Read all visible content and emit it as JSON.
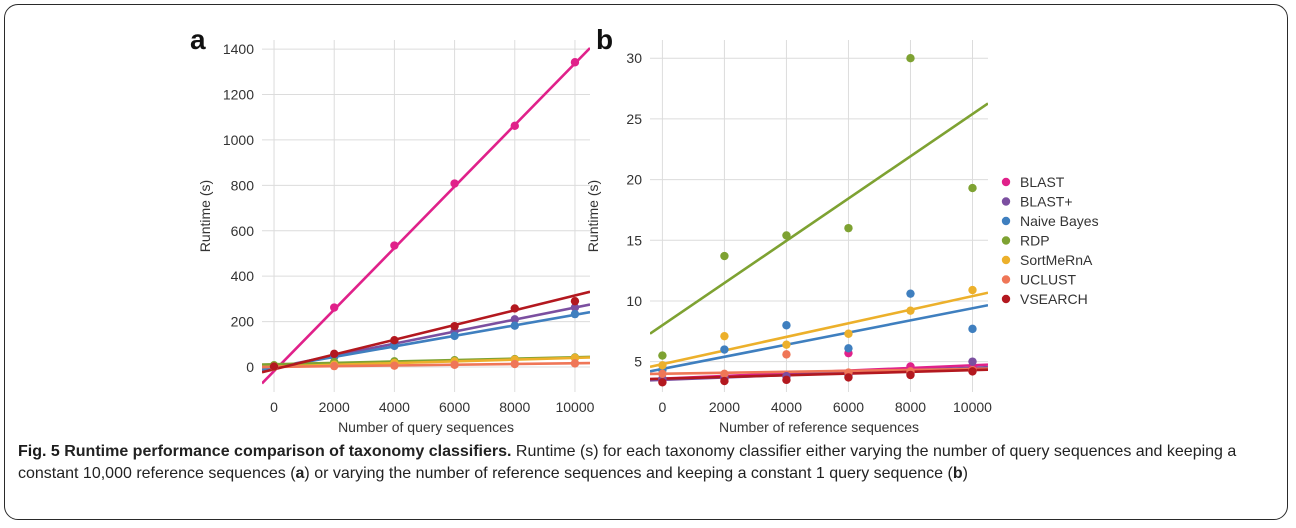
{
  "figure": {
    "panel_labels": [
      "a",
      "b"
    ],
    "caption": {
      "label": "Fig. 5",
      "title": " Runtime performance comparison of taxonomy classifiers.",
      "text1": " Runtime (s) for each taxonomy classifier either varying the number of query sequences and keeping a constant 10,000 reference sequences (",
      "ref_a": "a",
      "text2": ") or varying the number of reference sequences and keeping a constant 1 query sequence (",
      "ref_b": "b",
      "text3": ")"
    }
  },
  "series_colors": [
    {
      "name": "BLAST",
      "color": "#e0218a"
    },
    {
      "name": "BLAST+",
      "color": "#7b4fa0"
    },
    {
      "name": "Naive Bayes",
      "color": "#3f7fbf"
    },
    {
      "name": "RDP",
      "color": "#7ea232"
    },
    {
      "name": "SortMeRnA",
      "color": "#ecb02b"
    },
    {
      "name": "UCLUST",
      "color": "#ef7657"
    },
    {
      "name": "VSEARCH",
      "color": "#b3181f"
    }
  ],
  "chart_data": [
    {
      "type": "scatter",
      "panel": "a",
      "xlabel": "Number of query sequences",
      "ylabel": "Runtime (s)",
      "xlim": [
        -400,
        10500
      ],
      "ylim": [
        -110,
        1440
      ],
      "xticks": [
        0,
        2000,
        4000,
        6000,
        8000,
        10000
      ],
      "yticks": [
        0,
        200,
        400,
        600,
        800,
        1000,
        1200,
        1400
      ],
      "grid": true,
      "x": [
        0,
        2000,
        4000,
        6000,
        8000,
        10000
      ],
      "series": [
        {
          "name": "BLAST",
          "values": [
            2,
            262,
            535,
            808,
            1062,
            1342
          ],
          "fit": [
            -18,
            135.5
          ]
        },
        {
          "name": "BLAST+",
          "values": [
            1,
            53,
            105,
            158,
            210,
            262
          ],
          "fit": [
            -3,
            26.5
          ]
        },
        {
          "name": "Naive Bayes",
          "values": [
            2,
            45,
            93,
            137,
            182,
            233
          ],
          "fit": [
            -2,
            23.2
          ]
        },
        {
          "name": "RDP",
          "values": [
            8,
            22,
            25,
            30,
            35,
            42
          ],
          "fit": [
            12,
            3.1
          ]
        },
        {
          "name": "SortMeRnA",
          "values": [
            2,
            10,
            18,
            25,
            33,
            40
          ],
          "fit": [
            2,
            3.8
          ]
        },
        {
          "name": "UCLUST",
          "values": [
            1,
            4,
            6,
            10,
            13,
            16
          ],
          "fit": [
            0.5,
            1.6
          ]
        },
        {
          "name": "VSEARCH",
          "values": [
            2,
            58,
            118,
            180,
            258,
            290
          ],
          "fit": [
            -10,
            32.5
          ]
        }
      ]
    },
    {
      "type": "scatter",
      "panel": "b",
      "xlabel": "Number of reference sequences",
      "ylabel": "Runtime (s)",
      "xlim": [
        -400,
        10500
      ],
      "ylim": [
        2.5,
        31.5
      ],
      "xticks": [
        0,
        2000,
        4000,
        6000,
        8000,
        10000
      ],
      "yticks": [
        5,
        10,
        15,
        20,
        25,
        30
      ],
      "grid": true,
      "legend": "right",
      "x": [
        0,
        2000,
        4000,
        6000,
        8000,
        10000
      ],
      "series": [
        {
          "name": "BLAST",
          "values": [
            3.5,
            3.6,
            3.8,
            5.7,
            4.6,
            4.6
          ],
          "fit": [
            3.6,
            0.11
          ]
        },
        {
          "name": "BLAST+",
          "values": [
            3.6,
            3.7,
            3.8,
            3.9,
            4.0,
            5.0
          ],
          "fit": [
            3.5,
            0.1
          ]
        },
        {
          "name": "Naive Bayes",
          "values": [
            4.3,
            6.0,
            8.0,
            6.1,
            10.6,
            7.7
          ],
          "fit": [
            4.4,
            0.5
          ]
        },
        {
          "name": "RDP",
          "values": [
            5.5,
            13.7,
            15.4,
            16.0,
            30.0,
            19.3
          ],
          "fit": [
            8.0,
            1.74
          ]
        },
        {
          "name": "SortMeRnA",
          "values": [
            4.7,
            7.1,
            6.4,
            7.3,
            9.2,
            10.9
          ],
          "fit": [
            4.8,
            0.56
          ]
        },
        {
          "name": "UCLUST",
          "values": [
            4.0,
            4.0,
            5.6,
            4.1,
            4.2,
            4.3
          ],
          "fit": [
            4.0,
            0.04
          ]
        },
        {
          "name": "VSEARCH",
          "values": [
            3.3,
            3.4,
            3.5,
            3.7,
            3.9,
            4.2
          ],
          "fit": [
            3.6,
            0.07
          ]
        }
      ]
    }
  ]
}
